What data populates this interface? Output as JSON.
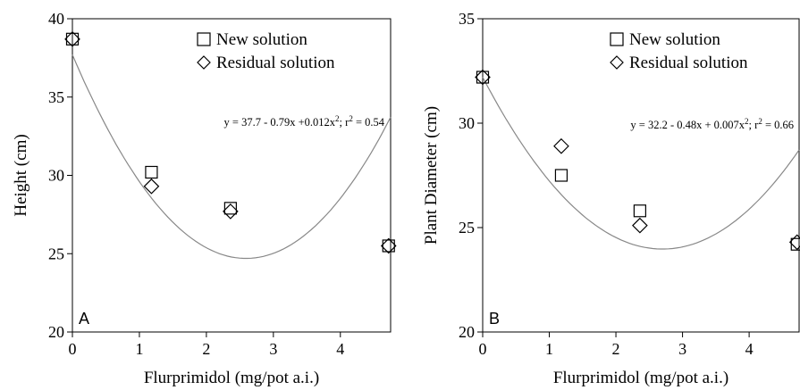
{
  "chart_data": [
    {
      "type": "scatter",
      "panel_label": "A",
      "xlabel": "Flurprimidol (mg/pot a.i.)",
      "ylabel": "Height (cm)",
      "xlim": [
        0,
        4.75
      ],
      "ylim": [
        20,
        40
      ],
      "xticks": [
        0,
        1,
        2,
        3,
        4
      ],
      "yticks": [
        20,
        25,
        30,
        35,
        40
      ],
      "grid": false,
      "legend_position": "top-right",
      "series": [
        {
          "name": "New solution",
          "marker": "square",
          "x": [
            0,
            1.18,
            2.36,
            4.72
          ],
          "y": [
            38.7,
            30.2,
            27.9,
            25.5
          ]
        },
        {
          "name": "Residual solution",
          "marker": "diamond",
          "x": [
            0,
            1.18,
            2.36,
            4.72
          ],
          "y": [
            38.7,
            29.3,
            27.7,
            25.5
          ]
        }
      ],
      "fit": {
        "intercept": 37.7,
        "b1": -0.79,
        "b2": 0.012,
        "equation": "y = 37.7 - 0.79x +0.012x",
        "sup": "2",
        "r2_label": "; r",
        "r2_value": " = 0.54"
      }
    },
    {
      "type": "scatter",
      "panel_label": "B",
      "xlabel": "Flurprimidol (mg/pot a.i.)",
      "ylabel": "Plant Diameter (cm)",
      "xlim": [
        0,
        4.75
      ],
      "ylim": [
        20,
        35
      ],
      "xticks": [
        0,
        1,
        2,
        3,
        4
      ],
      "yticks": [
        20,
        25,
        30,
        35
      ],
      "grid": false,
      "legend_position": "top-right",
      "series": [
        {
          "name": "New solution",
          "marker": "square",
          "x": [
            0,
            1.18,
            2.36,
            4.72
          ],
          "y": [
            32.2,
            27.5,
            25.8,
            24.2
          ]
        },
        {
          "name": "Residual solution",
          "marker": "diamond",
          "x": [
            0,
            1.18,
            2.36,
            4.72
          ],
          "y": [
            32.2,
            28.9,
            25.1,
            24.3
          ]
        }
      ],
      "fit": {
        "intercept": 32.2,
        "b1": -0.48,
        "b2": 0.007,
        "equation": "y = 32.2 - 0.48x + 0.007x",
        "sup": "2",
        "r2_label": "; r",
        "r2_value": " = 0.66"
      }
    }
  ]
}
